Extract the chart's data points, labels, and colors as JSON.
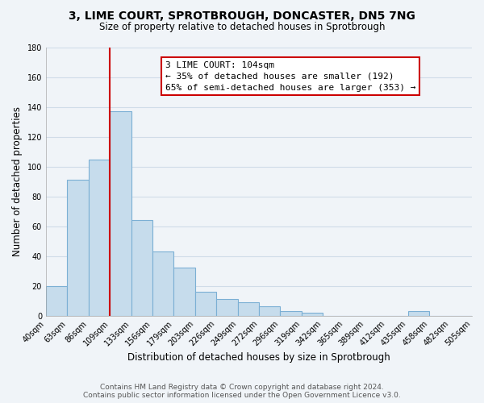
{
  "title": "3, LIME COURT, SPROTBROUGH, DONCASTER, DN5 7NG",
  "subtitle": "Size of property relative to detached houses in Sprotbrough",
  "xlabel": "Distribution of detached houses by size in Sprotbrough",
  "ylabel": "Number of detached properties",
  "bar_values": [
    20,
    91,
    105,
    137,
    64,
    43,
    32,
    16,
    11,
    9,
    6,
    3,
    2,
    0,
    0,
    0,
    0,
    3,
    0,
    0
  ],
  "bar_labels": [
    "40sqm",
    "63sqm",
    "86sqm",
    "109sqm",
    "133sqm",
    "156sqm",
    "179sqm",
    "203sqm",
    "226sqm",
    "249sqm",
    "272sqm",
    "296sqm",
    "319sqm",
    "342sqm",
    "365sqm",
    "389sqm",
    "412sqm",
    "435sqm",
    "458sqm",
    "482sqm",
    "505sqm"
  ],
  "bar_color": "#c6dcec",
  "bar_edge_color": "#7bafd4",
  "vline_color": "#cc0000",
  "vline_x_index": 3,
  "ylim": [
    0,
    180
  ],
  "yticks": [
    0,
    20,
    40,
    60,
    80,
    100,
    120,
    140,
    160,
    180
  ],
  "annotation_title": "3 LIME COURT: 104sqm",
  "annotation_line1": "← 35% of detached houses are smaller (192)",
  "annotation_line2": "65% of semi-detached houses are larger (353) →",
  "footer_line1": "Contains HM Land Registry data © Crown copyright and database right 2024.",
  "footer_line2": "Contains public sector information licensed under the Open Government Licence v3.0.",
  "background_color": "#f0f4f8",
  "grid_color": "#d0dce8",
  "title_fontsize": 10,
  "subtitle_fontsize": 8.5,
  "ylabel_fontsize": 8.5,
  "xlabel_fontsize": 8.5,
  "tick_fontsize": 7,
  "footer_fontsize": 6.5,
  "annotation_fontsize": 8
}
